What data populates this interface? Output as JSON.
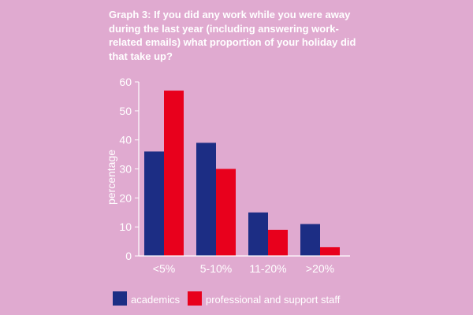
{
  "chart_data": {
    "type": "bar",
    "title": "Graph 3: If you did any work while you were away during the last year (including answering work-related emails) what proportion of your holiday did that take up?",
    "ylabel": "percentage",
    "xlabel": "",
    "categories": [
      "<5%",
      "5-10%",
      "11-20%",
      ">20%"
    ],
    "series": [
      {
        "name": "academics",
        "values": [
          36,
          39,
          15,
          11
        ],
        "color": "#1c2d84"
      },
      {
        "name": "professional and support staff",
        "values": [
          57,
          30,
          9,
          3
        ],
        "color": "#e8001c"
      }
    ],
    "ylim": [
      0,
      60
    ],
    "yticks": [
      0,
      10,
      20,
      30,
      40,
      50,
      60
    ],
    "grid": false,
    "legend": "bottom",
    "axis_color": "#ffffff",
    "background": "#e0aad0"
  }
}
